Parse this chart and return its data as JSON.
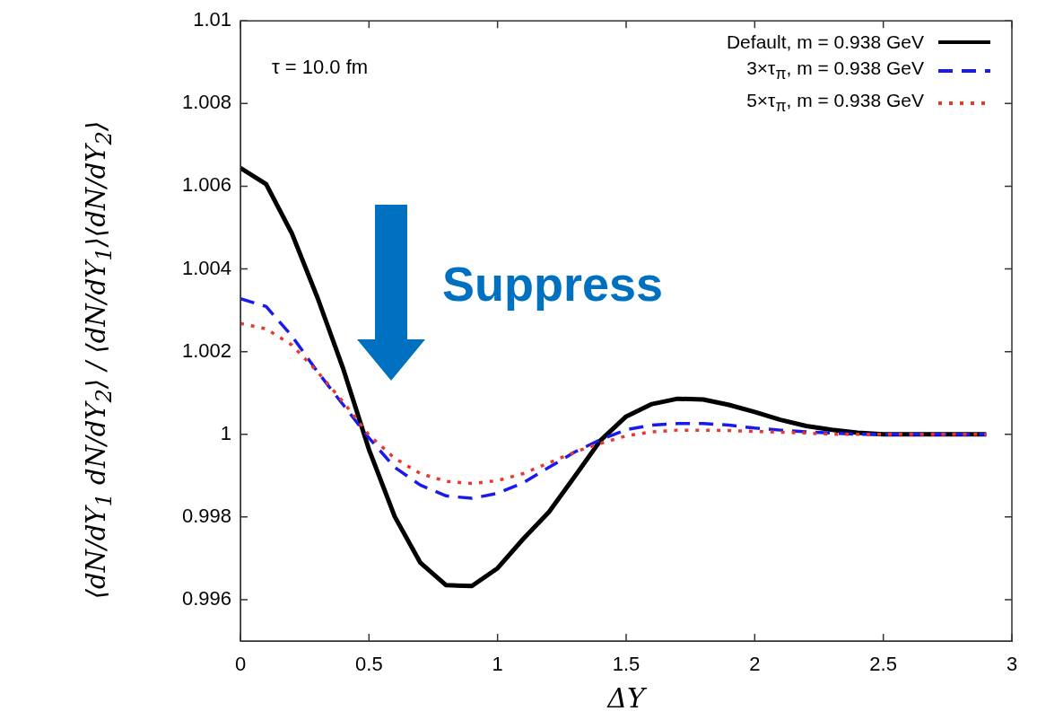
{
  "chart_data": {
    "type": "line",
    "xlabel": "ΔY",
    "ylabel": "⟨dN/dY$_{1}$ dN/dY$_{2}$⟩ / ⟨dN/dY$_{1}$⟩⟨dN/dY$_{2}$⟩",
    "x": [
      0,
      0.1,
      0.2,
      0.3,
      0.4,
      0.5,
      0.6,
      0.7,
      0.8,
      0.9,
      1.0,
      1.1,
      1.2,
      1.3,
      1.4,
      1.5,
      1.6,
      1.7,
      1.8,
      1.9,
      2.0,
      2.1,
      2.2,
      2.3,
      2.4,
      2.5,
      2.6,
      2.7,
      2.8,
      2.9
    ],
    "series": [
      {
        "name": "Default, m = 0.938 GeV",
        "color": "#000000",
        "line_style": "solid",
        "values": [
          1.00644,
          1.00605,
          1.00486,
          1.0033,
          1.00158,
          0.99963,
          0.99801,
          0.99689,
          0.99635,
          0.99633,
          0.99676,
          0.99747,
          0.99812,
          0.99898,
          0.99985,
          1.00043,
          1.00073,
          1.00086,
          1.00084,
          1.00071,
          1.00054,
          1.00035,
          1.0002,
          1.00011,
          1.00004,
          1.0,
          1.0,
          1.0,
          1.0,
          1.0
        ]
      },
      {
        "name": "3×τ$_{π}$, m = 0.938 GeV",
        "color": "#1a1aee",
        "line_style": "dashed",
        "values": [
          1.00328,
          1.00309,
          1.00238,
          1.00151,
          1.00071,
          0.99991,
          0.9992,
          0.99877,
          0.99851,
          0.99845,
          0.99857,
          0.99883,
          0.9992,
          0.99957,
          0.99987,
          1.00011,
          1.00022,
          1.00026,
          1.00026,
          1.00022,
          1.00015,
          1.0001,
          1.00006,
          1.00003,
          1.0,
          1.0,
          1.0,
          1.0,
          1.0,
          1.0
        ]
      },
      {
        "name": "5×τ$_{π}$, m = 0.938 GeV",
        "color": "#e8392e",
        "line_style": "dotted",
        "values": [
          1.00268,
          1.00255,
          1.00216,
          1.00151,
          1.00078,
          0.99998,
          0.99942,
          0.99905,
          0.99886,
          0.99881,
          0.99888,
          0.99905,
          0.99931,
          0.99957,
          0.99978,
          0.99996,
          1.00006,
          1.0001,
          1.0001,
          1.00009,
          1.00007,
          1.00005,
          1.00003,
          1.0,
          1.0,
          1.0,
          1.0,
          1.0,
          1.0,
          1.0
        ]
      }
    ],
    "xlim": [
      0,
      3
    ],
    "xticks": [
      0,
      0.5,
      1,
      1.5,
      2,
      2.5,
      3
    ],
    "ylim": [
      0.995,
      1.01
    ],
    "yticks": [
      0.996,
      0.998,
      1,
      1.002,
      1.004,
      1.006,
      1.008,
      1.01
    ],
    "annotations": [
      "τ = 10.0 fm",
      "Suppress"
    ],
    "legend": "top right",
    "grid": false,
    "marker": "none"
  }
}
